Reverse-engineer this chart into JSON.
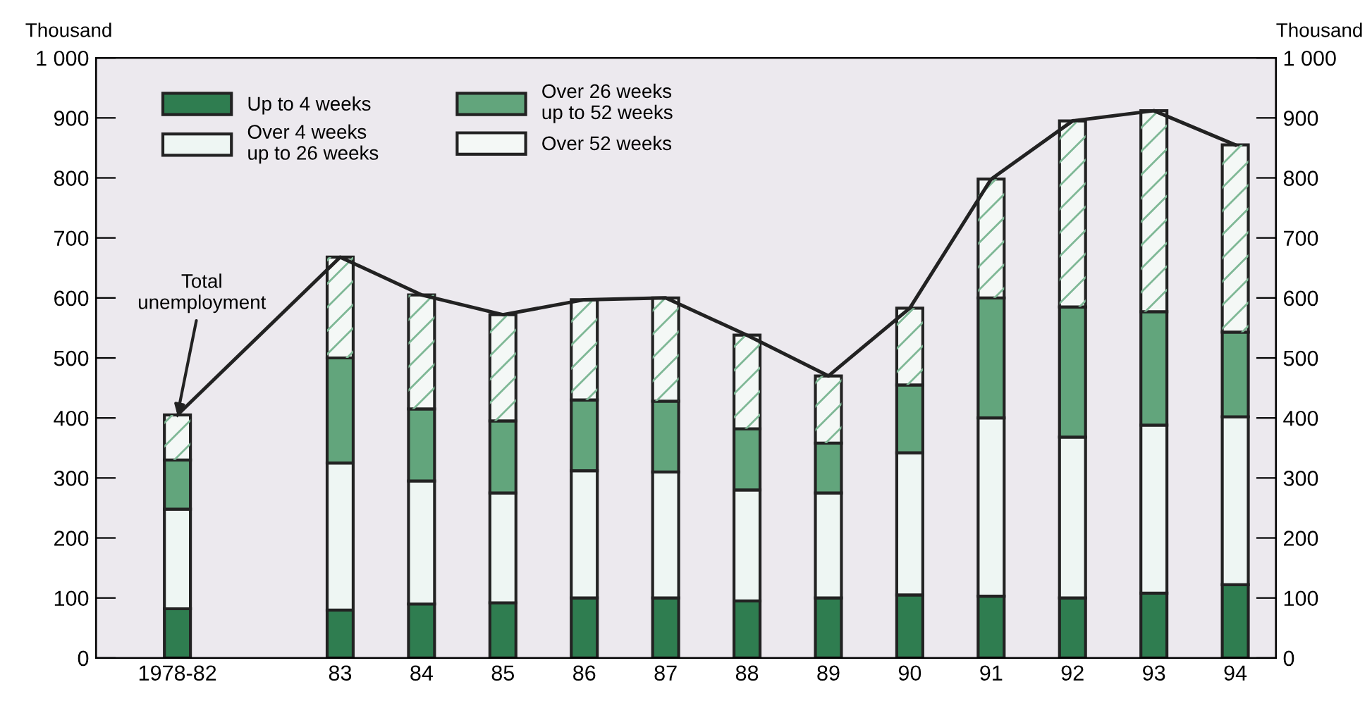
{
  "chart_data": {
    "type": "bar",
    "stacked": true,
    "categories": [
      "1978-82",
      null,
      "83",
      "84",
      "85",
      "86",
      "87",
      "88",
      "89",
      "90",
      "91",
      "92",
      "93",
      "94"
    ],
    "series": [
      {
        "name": "Up to 4 weeks",
        "color": "#2f7d50",
        "values": [
          82,
          null,
          80,
          90,
          92,
          100,
          100,
          95,
          100,
          105,
          103,
          100,
          108,
          122
        ]
      },
      {
        "name": "Over 4 weeks\nup to 26 weeks",
        "color": "#eef6f3",
        "values": [
          166,
          null,
          245,
          205,
          183,
          212,
          210,
          185,
          175,
          237,
          297,
          268,
          280,
          280
        ]
      },
      {
        "name": "Over 26 weeks\nup to 52 weeks",
        "color": "#62a57c",
        "values": [
          82,
          null,
          175,
          120,
          120,
          118,
          118,
          102,
          83,
          113,
          200,
          217,
          189,
          141
        ]
      },
      {
        "name": "Over 52 weeks",
        "color": "#f4f8f6",
        "values": [
          75,
          null,
          168,
          190,
          177,
          167,
          172,
          156,
          112,
          128,
          198,
          310,
          335,
          312
        ]
      },
      {
        "type": "line",
        "color": "#222222",
        "values": [
          405,
          null,
          668,
          605,
          572,
          597,
          600,
          538,
          470,
          583,
          798,
          895,
          912,
          855
        ]
      }
    ],
    "ylabel": "Thousand",
    "y2label": "Thousand",
    "ylim": [
      0,
      1000
    ],
    "y2lim": [
      0,
      1000
    ],
    "yticks": [
      0,
      100,
      200,
      300,
      400,
      500,
      600,
      700,
      800,
      900,
      {
        "value": 1000,
        "label": "1 000"
      }
    ],
    "y2ticks": [
      0,
      100,
      200,
      300,
      400,
      500,
      600,
      700,
      800,
      900,
      {
        "value": 1000,
        "label": "1 000"
      }
    ],
    "annotations": [
      {
        "text": "Total\nunemployment",
        "x": "1978-82",
        "y": 405
      }
    ],
    "legend": "top left",
    "grid": false
  }
}
